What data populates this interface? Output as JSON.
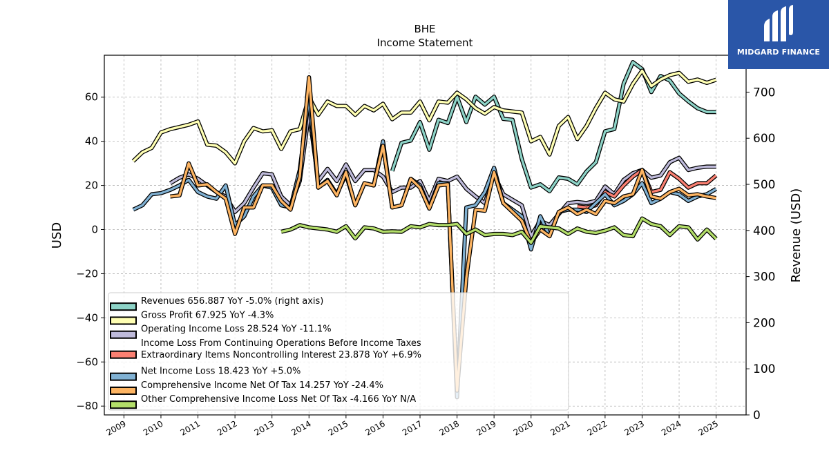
{
  "logo": {
    "text": "MIDGARD FINANCE",
    "color": "#2a56a8"
  },
  "chart_data": {
    "type": "line",
    "title": "BHE",
    "subtitle": "Income Statement",
    "ylabel": "USD",
    "ylabel_right": "Revenue (USD)",
    "ylim": [
      -84,
      79
    ],
    "ylim_right": [
      0,
      780
    ],
    "yticks": [
      -80,
      -60,
      -40,
      -20,
      0,
      20,
      40,
      60
    ],
    "yticks_right": [
      0,
      100,
      200,
      300,
      400,
      500,
      600,
      700
    ],
    "xlim": [
      2008.47,
      2025.81
    ],
    "xticks": [
      "2009",
      "2010",
      "2011",
      "2012",
      "2013",
      "2014",
      "2015",
      "2016",
      "2017",
      "2018",
      "2019",
      "2020",
      "2021",
      "2022",
      "2023",
      "2024",
      "2025"
    ],
    "grid": true,
    "legend_position": "lower-left",
    "series": [
      {
        "name": "Revenues",
        "legend_value": "656.887 YoY -5.0% (right axis)",
        "axis": "right",
        "color": "#8dd3c7",
        "x": [
          2016.25,
          2016.5,
          2016.75,
          2017.0,
          2017.25,
          2017.5,
          2017.75,
          2018.0,
          2018.25,
          2018.5,
          2018.75,
          2019.0,
          2019.25,
          2019.5,
          2019.75,
          2020.0,
          2020.25,
          2020.5,
          2020.75,
          2021.0,
          2021.25,
          2021.5,
          2021.75,
          2022.0,
          2022.25,
          2022.5,
          2022.75,
          2023.0,
          2023.25,
          2023.5,
          2023.75,
          2024.0,
          2024.25,
          2024.5,
          2024.75,
          2025.0
        ],
        "y": [
          529,
          590,
          595,
          635,
          575,
          640,
          633,
          690,
          635,
          690,
          673,
          690,
          642,
          640,
          555,
          493,
          500,
          485,
          515,
          512,
          500,
          528,
          548,
          615,
          620,
          718,
          765,
          750,
          700,
          735,
          725,
          697,
          680,
          665,
          657,
          657
        ]
      },
      {
        "name": "Gross Profit",
        "legend_value": "67.925 YoY -4.3%",
        "axis": "left",
        "color": "#ffffb3",
        "x": [
          2009.25,
          2009.5,
          2009.75,
          2010.0,
          2010.25,
          2010.5,
          2010.75,
          2011.0,
          2011.25,
          2011.5,
          2011.75,
          2012.0,
          2012.25,
          2012.5,
          2012.75,
          2013.0,
          2013.25,
          2013.5,
          2013.75,
          2014.0,
          2014.25,
          2014.5,
          2014.75,
          2015.0,
          2015.25,
          2015.5,
          2015.75,
          2016.0,
          2016.25,
          2016.5,
          2016.75,
          2017.0,
          2017.25,
          2017.5,
          2017.75,
          2018.0,
          2018.25,
          2018.5,
          2018.75,
          2019.0,
          2019.25,
          2019.5,
          2019.75,
          2020.0,
          2020.25,
          2020.5,
          2020.75,
          2021.0,
          2021.25,
          2021.5,
          2021.75,
          2022.0,
          2022.25,
          2022.5,
          2022.75,
          2023.0,
          2023.25,
          2023.5,
          2023.75,
          2024.0,
          2024.25,
          2024.5,
          2024.75,
          2025.0
        ],
        "y": [
          31,
          35,
          37,
          44,
          45.5,
          46.5,
          47.5,
          49,
          38.5,
          38,
          35,
          30,
          40,
          46,
          44.5,
          45,
          36.5,
          44.5,
          45.5,
          60,
          52,
          58,
          56,
          56,
          52,
          56,
          54,
          57,
          50,
          53,
          53,
          58,
          49.5,
          58,
          57.5,
          62,
          59,
          55,
          52.5,
          55.5,
          54,
          53.5,
          53,
          40,
          42,
          34,
          47,
          51,
          41,
          47,
          55,
          62,
          59,
          58,
          66,
          72,
          65,
          68,
          70,
          71,
          67,
          68,
          66.5,
          67.9
        ]
      },
      {
        "name": "Operating Income Loss",
        "legend_value": "28.524 YoY -11.1%",
        "axis": "left",
        "color": "#bebada",
        "x": [
          2010.25,
          2010.5,
          2010.75,
          2011.0,
          2011.25,
          2011.5,
          2011.75,
          2012.0,
          2012.25,
          2012.5,
          2012.75,
          2013.0,
          2013.25,
          2013.5,
          2013.75,
          2014.0,
          2014.25,
          2014.5,
          2014.75,
          2015.0,
          2015.25,
          2015.5,
          2015.75,
          2016.0,
          2016.25,
          2016.5,
          2016.75,
          2017.0,
          2017.25,
          2017.5,
          2017.75,
          2018.0,
          2018.25,
          2018.5,
          2018.75,
          2019.0,
          2019.25,
          2019.5,
          2019.75,
          2020.0,
          2020.25,
          2020.5,
          2020.75,
          2021.0,
          2021.25,
          2021.5,
          2021.75,
          2022.0,
          2022.25,
          2022.5,
          2022.75,
          2023.0,
          2023.25,
          2023.5,
          2023.75,
          2024.0,
          2024.25,
          2024.5,
          2024.75,
          2025.0
        ],
        "y": [
          21,
          23.5,
          25,
          23,
          20,
          17,
          15,
          8,
          12,
          19,
          25.5,
          25,
          15,
          11,
          22,
          53,
          22,
          27.5,
          22,
          29.5,
          22,
          27,
          27,
          24,
          17,
          19,
          19,
          22,
          13,
          23,
          22,
          24,
          18.5,
          15,
          12,
          25,
          16,
          13.5,
          11,
          -3,
          4,
          2,
          7,
          12,
          12.5,
          12,
          13,
          19.5,
          16,
          22.5,
          25.5,
          27,
          23.5,
          24.5,
          30.5,
          32.5,
          27,
          28,
          28.5,
          28.5
        ]
      },
      {
        "name": "Income Loss From Continuing Operations Before Income Taxes Extraordinary Items Noncontrolling Interest",
        "legend_value": "23.878 YoY +6.9%",
        "axis": "left",
        "color": "#fb8072",
        "x": [
          2021.25,
          2021.5,
          2021.75,
          2022.0,
          2022.25,
          2022.5,
          2022.75,
          2023.0,
          2023.25,
          2023.5,
          2023.75,
          2024.0,
          2024.25,
          2024.5,
          2024.75,
          2025.0
        ],
        "y": [
          10.5,
          10,
          11,
          17,
          15,
          20,
          24,
          27,
          17,
          18,
          26,
          23,
          19,
          21,
          21,
          24.5
        ]
      },
      {
        "name": "Net Income Loss",
        "legend_value": "18.423 YoY +5.0%",
        "axis": "left",
        "color": "#80b1d3",
        "x": [
          2009.25,
          2009.5,
          2009.75,
          2010.0,
          2010.25,
          2010.5,
          2010.75,
          2011.0,
          2011.25,
          2011.5,
          2011.75,
          2012.0,
          2012.25,
          2012.5,
          2012.75,
          2013.0,
          2013.25,
          2013.5,
          2013.75,
          2014.0,
          2014.25,
          2014.5,
          2014.75,
          2015.0,
          2015.25,
          2015.5,
          2015.75,
          2016.0,
          2016.25,
          2016.5,
          2016.75,
          2017.0,
          2017.25,
          2017.5,
          2017.75,
          2018.0,
          2018.25,
          2018.5,
          2018.75,
          2019.0,
          2019.25,
          2019.5,
          2019.75,
          2020.0,
          2020.25,
          2020.5,
          2020.75,
          2021.0,
          2021.25,
          2021.5,
          2021.75,
          2022.0,
          2022.25,
          2022.5,
          2022.75,
          2023.0,
          2023.25,
          2023.5,
          2023.75,
          2024.0,
          2024.25,
          2024.5,
          2024.75,
          2025.0
        ],
        "y": [
          9,
          11,
          16,
          16.5,
          18,
          20,
          22.5,
          17,
          15,
          14,
          20,
          2,
          6,
          15,
          20,
          19,
          11,
          10,
          27,
          60,
          19,
          22.5,
          16,
          25,
          11,
          21,
          20,
          40,
          10,
          11,
          23,
          20,
          10,
          21,
          21,
          -76,
          10,
          11,
          17,
          28,
          12,
          9,
          6,
          -9,
          6,
          -3,
          8,
          9,
          9,
          8,
          12,
          16,
          11,
          13,
          16,
          21,
          12,
          14,
          17,
          16,
          13,
          15,
          16,
          18.4
        ]
      },
      {
        "name": "Comprehensive Income Net Of Tax",
        "legend_value": "14.257 YoY -24.4%",
        "axis": "left",
        "color": "#fdb462",
        "x": [
          2010.25,
          2010.5,
          2010.75,
          2011.0,
          2011.25,
          2011.5,
          2011.75,
          2012.0,
          2012.25,
          2012.5,
          2012.75,
          2013.0,
          2013.25,
          2013.5,
          2013.75,
          2014.0,
          2014.25,
          2014.5,
          2014.75,
          2015.0,
          2015.25,
          2015.5,
          2015.75,
          2016.0,
          2016.25,
          2016.5,
          2016.75,
          2017.0,
          2017.25,
          2017.5,
          2017.75,
          2018.0,
          2018.25,
          2018.5,
          2018.75,
          2019.0,
          2019.25,
          2019.5,
          2019.75,
          2020.0,
          2020.25,
          2020.5,
          2020.75,
          2021.0,
          2021.25,
          2021.5,
          2021.75,
          2022.0,
          2022.25,
          2022.5,
          2022.75,
          2023.0,
          2023.25,
          2023.5,
          2023.75,
          2024.0,
          2024.25,
          2024.5,
          2024.75,
          2025.0
        ],
        "y": [
          15,
          15.5,
          30,
          20,
          20.5,
          17,
          14,
          -2,
          10,
          10,
          20,
          20,
          13,
          9,
          24,
          69,
          19,
          22,
          15.5,
          26,
          11,
          21,
          20,
          38,
          10,
          11,
          23,
          19,
          9.5,
          20,
          20.5,
          -73,
          -22,
          9,
          8.5,
          26,
          12,
          8,
          4,
          -6,
          0,
          -3,
          8,
          10,
          7,
          9,
          7,
          13,
          12,
          15,
          16,
          27,
          15,
          14,
          17,
          18.5,
          15.5,
          16,
          15,
          14.3
        ]
      },
      {
        "name": "Other Comprehensive Income Loss Net Of Tax",
        "legend_value": "-4.166 YoY N/A",
        "axis": "left",
        "color": "#b3de69",
        "x": [
          2013.25,
          2013.5,
          2013.75,
          2014.0,
          2014.25,
          2014.5,
          2014.75,
          2015.0,
          2015.25,
          2015.5,
          2015.75,
          2016.0,
          2016.25,
          2016.5,
          2016.75,
          2017.0,
          2017.25,
          2017.5,
          2017.75,
          2018.0,
          2018.25,
          2018.5,
          2018.75,
          2019.0,
          2019.25,
          2019.5,
          2019.75,
          2020.0,
          2020.25,
          2020.5,
          2020.75,
          2021.0,
          2021.25,
          2021.5,
          2021.75,
          2022.0,
          2022.25,
          2022.5,
          2022.75,
          2023.0,
          2023.25,
          2023.5,
          2023.75,
          2024.0,
          2024.25,
          2024.5,
          2024.75,
          2025.0
        ],
        "y": [
          -1,
          0,
          2,
          1,
          0.5,
          0,
          -1,
          1.5,
          -4,
          1,
          0.5,
          -1,
          -0.8,
          -1,
          1.5,
          1,
          2.5,
          2,
          2,
          2.5,
          -2,
          0,
          -2.5,
          -2,
          -2,
          -2.5,
          -1,
          -6,
          1.5,
          1,
          0.5,
          -2,
          0.5,
          -1,
          -1.5,
          -0.5,
          1,
          -2.5,
          -3,
          5,
          2.5,
          1.5,
          -2.5,
          1.5,
          1,
          -4.5,
          0,
          -4.2
        ]
      }
    ]
  }
}
